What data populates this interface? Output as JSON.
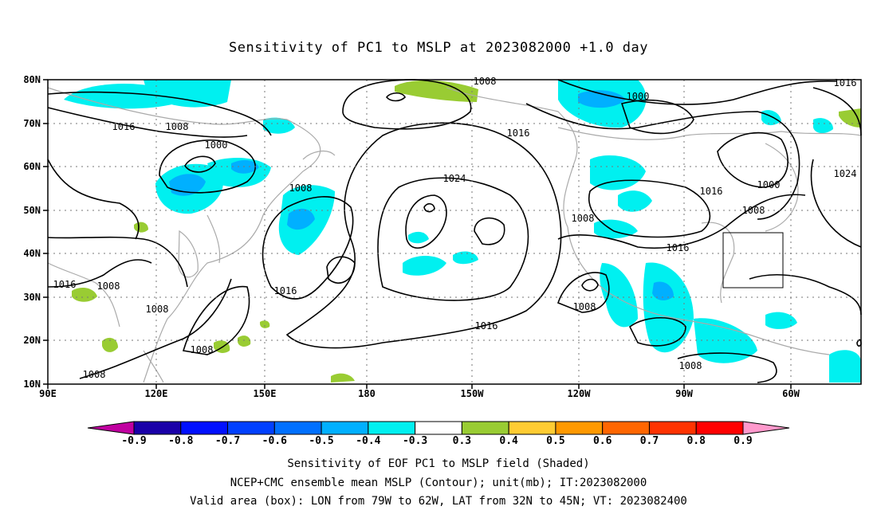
{
  "title": "Sensitivity of PC1 to MSLP at 2023082000 +1.0 day",
  "map": {
    "lon_ticks": [
      "90E",
      "120E",
      "150E",
      "180",
      "150W",
      "120W",
      "90W",
      "60W"
    ],
    "lat_ticks": [
      "80N",
      "70N",
      "60N",
      "50N",
      "40N",
      "30N",
      "20N",
      "10N"
    ],
    "contour_labels": [
      "1008",
      "1016",
      "1016",
      "1008",
      "1000",
      "1008",
      "1016",
      "1016",
      "1008",
      "1008",
      "1008",
      "1008",
      "1024",
      "1016",
      "1016",
      "1000",
      "1016",
      "1000",
      "1008",
      "1024",
      "1008",
      "1016",
      "1008",
      "1008"
    ],
    "valid_box": {
      "lon_from": "79W",
      "lon_to": "62W",
      "lat_from": "32N",
      "lat_to": "45N"
    },
    "grid": true
  },
  "colorbar": {
    "labels": [
      "-0.9",
      "-0.8",
      "-0.7",
      "-0.6",
      "-0.5",
      "-0.4",
      "-0.3",
      "0.3",
      "0.4",
      "0.5",
      "0.6",
      "0.7",
      "0.8",
      "0.9"
    ],
    "colors": [
      "#1a00a8",
      "#0010ff",
      "#0040ff",
      "#0070ff",
      "#00b0ff",
      "#00f0f0",
      "#ffffff",
      "#99cc33",
      "#ffcc33",
      "#ff9900",
      "#ff6600",
      "#ff3300",
      "#ff0000"
    ],
    "end_low_color": "#c000a0",
    "end_high_color": "#ff99cc"
  },
  "footer": {
    "line1": "Sensitivity of EOF PC1 to MSLP field (Shaded)",
    "line2": "NCEP+CMC ensemble mean MSLP (Contour); unit(mb); IT:2023082000",
    "line3": "Valid area (box): LON from 79W to 62W, LAT from 32N to 45N; VT: 2023082400"
  },
  "colors": {
    "cyan_shade": "#00f0f0",
    "blue_shade": "#00b0ff",
    "green_shade": "#99cc33",
    "coast": "#aaaaaa"
  }
}
